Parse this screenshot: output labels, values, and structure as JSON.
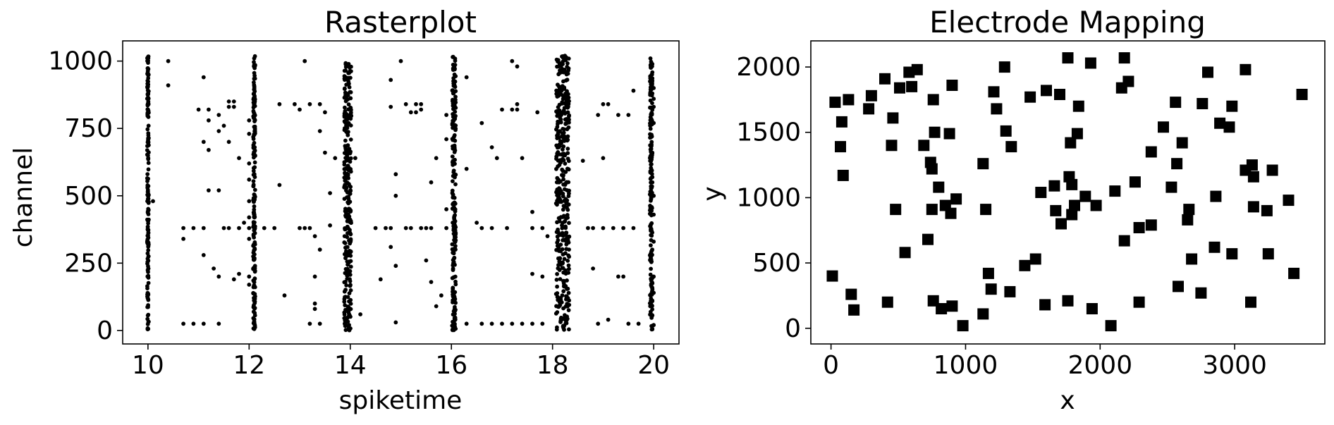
{
  "chart_data": [
    {
      "type": "scatter",
      "title": "Rasterplot",
      "xlabel": "spiketime",
      "ylabel": "channel",
      "xlim": [
        9.5,
        20.5
      ],
      "ylim": [
        -50,
        1075
      ],
      "xticks": [
        10,
        12,
        14,
        16,
        18,
        20
      ],
      "xtick_labels": [
        "10",
        "12",
        "14",
        "16",
        "18",
        "20"
      ],
      "yticks": [
        0,
        250,
        500,
        750,
        1000
      ],
      "ytick_labels": [
        "0",
        "250",
        "500",
        "750",
        "1000"
      ],
      "marker": "circle",
      "color": "#000000",
      "grid": false,
      "bursts": [
        {
          "t": 10.0,
          "width": 0.03,
          "ymin": 0,
          "ymax": 1020
        },
        {
          "t": 12.1,
          "width": 0.04,
          "ymin": 0,
          "ymax": 1020
        },
        {
          "t": 13.95,
          "width": 0.14,
          "ymin": 0,
          "ymax": 1020
        },
        {
          "t": 16.05,
          "width": 0.07,
          "ymin": 0,
          "ymax": 1020
        },
        {
          "t": 18.2,
          "width": 0.26,
          "ymin": 0,
          "ymax": 1020
        },
        {
          "t": 19.95,
          "width": 0.05,
          "ymin": 0,
          "ymax": 1020
        }
      ],
      "scattered_points": [
        [
          10.4,
          1000
        ],
        [
          10.4,
          910
        ],
        [
          10.1,
          480
        ],
        [
          10.7,
          380
        ],
        [
          10.9,
          380
        ],
        [
          11.1,
          380
        ],
        [
          10.7,
          340
        ],
        [
          10.7,
          25
        ],
        [
          10.9,
          25
        ],
        [
          11.1,
          25
        ],
        [
          11.4,
          25
        ],
        [
          11.0,
          820
        ],
        [
          11.1,
          940
        ],
        [
          11.2,
          820
        ],
        [
          11.2,
          780
        ],
        [
          11.1,
          700
        ],
        [
          11.2,
          670
        ],
        [
          11.4,
          740
        ],
        [
          11.5,
          760
        ],
        [
          11.4,
          800
        ],
        [
          11.6,
          830
        ],
        [
          11.6,
          850
        ],
        [
          11.7,
          830
        ],
        [
          11.7,
          850
        ],
        [
          11.6,
          700
        ],
        [
          11.8,
          640
        ],
        [
          11.4,
          520
        ],
        [
          11.2,
          520
        ],
        [
          11.1,
          280
        ],
        [
          11.3,
          230
        ],
        [
          11.4,
          200
        ],
        [
          11.6,
          380
        ],
        [
          11.8,
          380
        ],
        [
          11.5,
          380
        ],
        [
          11.7,
          190
        ],
        [
          11.8,
          210
        ],
        [
          11.9,
          400
        ],
        [
          12.0,
          560
        ],
        [
          12.0,
          480
        ],
        [
          12.0,
          420
        ],
        [
          12.0,
          380
        ],
        [
          12.0,
          340
        ],
        [
          12.0,
          200
        ],
        [
          12.0,
          170
        ],
        [
          12.0,
          780
        ],
        [
          12.0,
          730
        ],
        [
          12.0,
          620
        ],
        [
          12.3,
          380
        ],
        [
          12.5,
          380
        ],
        [
          12.6,
          840
        ],
        [
          12.6,
          540
        ],
        [
          12.7,
          130
        ],
        [
          12.9,
          840
        ],
        [
          13.0,
          380
        ],
        [
          13.0,
          820
        ],
        [
          13.1,
          380
        ],
        [
          13.1,
          1000
        ],
        [
          13.2,
          840
        ],
        [
          13.2,
          380
        ],
        [
          13.3,
          350
        ],
        [
          13.4,
          300
        ],
        [
          13.3,
          200
        ],
        [
          13.3,
          100
        ],
        [
          13.3,
          80
        ],
        [
          13.4,
          25
        ],
        [
          13.2,
          25
        ],
        [
          13.4,
          840
        ],
        [
          13.4,
          740
        ],
        [
          13.5,
          810
        ],
        [
          13.5,
          660
        ],
        [
          13.7,
          640
        ],
        [
          13.6,
          510
        ],
        [
          13.6,
          390
        ],
        [
          14.1,
          640
        ],
        [
          14.2,
          60
        ],
        [
          14.5,
          380
        ],
        [
          14.6,
          190
        ],
        [
          14.7,
          380
        ],
        [
          14.8,
          380
        ],
        [
          14.8,
          310
        ],
        [
          14.9,
          240
        ],
        [
          14.9,
          30
        ],
        [
          14.8,
          830
        ],
        [
          14.8,
          930
        ],
        [
          15.0,
          1000
        ],
        [
          15.1,
          840
        ],
        [
          15.1,
          380
        ],
        [
          15.2,
          380
        ],
        [
          15.2,
          810
        ],
        [
          15.3,
          840
        ],
        [
          15.3,
          810
        ],
        [
          15.4,
          820
        ],
        [
          15.4,
          380
        ],
        [
          15.5,
          380
        ],
        [
          15.6,
          550
        ],
        [
          15.6,
          380
        ],
        [
          15.5,
          260
        ],
        [
          15.6,
          180
        ],
        [
          15.7,
          90
        ],
        [
          15.8,
          130
        ],
        [
          15.9,
          450
        ],
        [
          15.9,
          380
        ],
        [
          15.4,
          840
        ],
        [
          15.7,
          640
        ],
        [
          15.9,
          800
        ],
        [
          15.9,
          710
        ],
        [
          14.9,
          580
        ],
        [
          14.9,
          500
        ],
        [
          16.3,
          940
        ],
        [
          16.3,
          600
        ],
        [
          16.5,
          400
        ],
        [
          16.6,
          380
        ],
        [
          16.8,
          380
        ],
        [
          16.6,
          770
        ],
        [
          16.8,
          680
        ],
        [
          16.9,
          640
        ],
        [
          17.0,
          820
        ],
        [
          17.1,
          380
        ],
        [
          17.2,
          1000
        ],
        [
          17.2,
          820
        ],
        [
          17.3,
          980
        ],
        [
          17.3,
          840
        ],
        [
          17.3,
          820
        ],
        [
          17.4,
          640
        ],
        [
          17.6,
          210
        ],
        [
          17.6,
          440
        ],
        [
          17.6,
          380
        ],
        [
          17.8,
          380
        ],
        [
          17.7,
          810
        ],
        [
          17.8,
          200
        ],
        [
          17.9,
          350
        ],
        [
          16.6,
          25
        ],
        [
          16.8,
          25
        ],
        [
          17.0,
          25
        ],
        [
          17.2,
          25
        ],
        [
          17.4,
          25
        ],
        [
          17.6,
          25
        ],
        [
          17.8,
          25
        ],
        [
          16.3,
          25
        ],
        [
          18.6,
          630
        ],
        [
          18.7,
          380
        ],
        [
          18.8,
          380
        ],
        [
          18.8,
          230
        ],
        [
          18.9,
          800
        ],
        [
          19.0,
          840
        ],
        [
          19.0,
          640
        ],
        [
          19.0,
          380
        ],
        [
          19.1,
          840
        ],
        [
          19.1,
          40
        ],
        [
          19.2,
          380
        ],
        [
          19.3,
          200
        ],
        [
          19.3,
          800
        ],
        [
          19.4,
          200
        ],
        [
          19.4,
          380
        ],
        [
          19.5,
          800
        ],
        [
          19.6,
          380
        ],
        [
          19.6,
          890
        ],
        [
          19.5,
          25
        ],
        [
          19.7,
          25
        ],
        [
          18.9,
          25
        ],
        [
          20.0,
          900
        ],
        [
          20.0,
          860
        ],
        [
          20.0,
          830
        ],
        [
          20.0,
          770
        ],
        [
          20.0,
          500
        ],
        [
          20.0,
          430
        ],
        [
          20.0,
          330
        ],
        [
          20.0,
          200
        ],
        [
          20.0,
          140
        ],
        [
          20.0,
          20
        ]
      ]
    },
    {
      "type": "scatter",
      "title": "Electrode Mapping",
      "xlabel": "x",
      "ylabel": "y",
      "xlim": [
        -150,
        3670
      ],
      "ylim": [
        -120,
        2200
      ],
      "xticks": [
        0,
        1000,
        2000,
        3000
      ],
      "xtick_labels": [
        "0",
        "1000",
        "2000",
        "3000"
      ],
      "yticks": [
        0,
        500,
        1000,
        1500,
        2000
      ],
      "ytick_labels": [
        "0",
        "500",
        "1000",
        "1500",
        "2000"
      ],
      "marker": "square",
      "color": "#000000",
      "grid": false,
      "points": [
        [
          10,
          400
        ],
        [
          30,
          1730
        ],
        [
          70,
          1390
        ],
        [
          80,
          1580
        ],
        [
          90,
          1170
        ],
        [
          130,
          1750
        ],
        [
          150,
          260
        ],
        [
          170,
          140
        ],
        [
          280,
          1680
        ],
        [
          300,
          1780
        ],
        [
          400,
          1910
        ],
        [
          420,
          200
        ],
        [
          450,
          1400
        ],
        [
          460,
          1610
        ],
        [
          480,
          910
        ],
        [
          510,
          1840
        ],
        [
          550,
          580
        ],
        [
          580,
          1960
        ],
        [
          600,
          1850
        ],
        [
          640,
          1980
        ],
        [
          690,
          1400
        ],
        [
          720,
          680
        ],
        [
          740,
          1270
        ],
        [
          750,
          1220
        ],
        [
          750,
          910
        ],
        [
          760,
          1750
        ],
        [
          770,
          1500
        ],
        [
          760,
          210
        ],
        [
          800,
          1080
        ],
        [
          820,
          150
        ],
        [
          850,
          940
        ],
        [
          880,
          1490
        ],
        [
          890,
          880
        ],
        [
          900,
          1860
        ],
        [
          900,
          170
        ],
        [
          930,
          990
        ],
        [
          980,
          20
        ],
        [
          1130,
          110
        ],
        [
          1130,
          1260
        ],
        [
          1150,
          910
        ],
        [
          1170,
          420
        ],
        [
          1190,
          300
        ],
        [
          1210,
          1810
        ],
        [
          1230,
          1680
        ],
        [
          1290,
          2000
        ],
        [
          1300,
          1510
        ],
        [
          1330,
          280
        ],
        [
          1340,
          1390
        ],
        [
          1440,
          480
        ],
        [
          1480,
          1770
        ],
        [
          1520,
          530
        ],
        [
          1560,
          1040
        ],
        [
          1590,
          180
        ],
        [
          1600,
          1820
        ],
        [
          1660,
          1090
        ],
        [
          1670,
          900
        ],
        [
          1700,
          1790
        ],
        [
          1710,
          800
        ],
        [
          1760,
          210
        ],
        [
          1760,
          2070
        ],
        [
          1770,
          1160
        ],
        [
          1780,
          1420
        ],
        [
          1790,
          870
        ],
        [
          1790,
          1100
        ],
        [
          1810,
          940
        ],
        [
          1830,
          1490
        ],
        [
          1840,
          1700
        ],
        [
          1890,
          1010
        ],
        [
          1930,
          2030
        ],
        [
          1940,
          150
        ],
        [
          1970,
          940
        ],
        [
          2080,
          20
        ],
        [
          2110,
          1050
        ],
        [
          2160,
          1840
        ],
        [
          2180,
          670
        ],
        [
          2180,
          2070
        ],
        [
          2210,
          1890
        ],
        [
          2260,
          1120
        ],
        [
          2290,
          770
        ],
        [
          2290,
          200
        ],
        [
          2380,
          790
        ],
        [
          2380,
          1350
        ],
        [
          2470,
          1540
        ],
        [
          2530,
          1080
        ],
        [
          2560,
          1730
        ],
        [
          2570,
          1260
        ],
        [
          2580,
          320
        ],
        [
          2610,
          1420
        ],
        [
          2650,
          830
        ],
        [
          2660,
          910
        ],
        [
          2680,
          530
        ],
        [
          2750,
          270
        ],
        [
          2760,
          1720
        ],
        [
          2800,
          1960
        ],
        [
          2850,
          620
        ],
        [
          2860,
          1010
        ],
        [
          2890,
          1570
        ],
        [
          2960,
          1540
        ],
        [
          2980,
          1700
        ],
        [
          2980,
          570
        ],
        [
          3080,
          1980
        ],
        [
          3080,
          1210
        ],
        [
          3120,
          200
        ],
        [
          3130,
          1250
        ],
        [
          3140,
          1160
        ],
        [
          3140,
          930
        ],
        [
          3240,
          900
        ],
        [
          3250,
          570
        ],
        [
          3280,
          1210
        ],
        [
          3400,
          980
        ],
        [
          3440,
          420
        ],
        [
          3500,
          1790
        ]
      ]
    }
  ]
}
